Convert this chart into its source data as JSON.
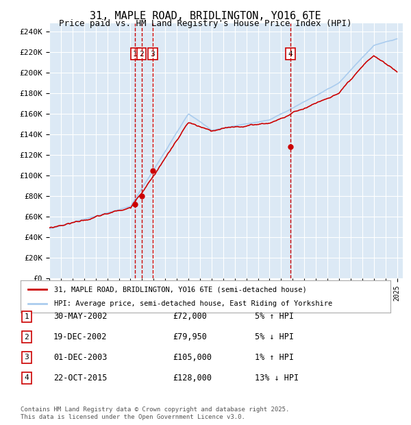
{
  "title": "31, MAPLE ROAD, BRIDLINGTON, YO16 6TE",
  "subtitle": "Price paid vs. HM Land Registry's House Price Index (HPI)",
  "ylabel_ticks": [
    "£0",
    "£20K",
    "£40K",
    "£60K",
    "£80K",
    "£100K",
    "£120K",
    "£140K",
    "£160K",
    "£180K",
    "£200K",
    "£220K",
    "£240K"
  ],
  "ytick_values": [
    0,
    20000,
    40000,
    60000,
    80000,
    100000,
    120000,
    140000,
    160000,
    180000,
    200000,
    220000,
    240000
  ],
  "ylim": [
    0,
    248000
  ],
  "xlim_start": 1995,
  "xlim_end": 2025.5,
  "background_color": "#dce9f5",
  "plot_bg_color": "#dce9f5",
  "outer_bg": "#ffffff",
  "red_line_color": "#cc0000",
  "blue_line_color": "#aaccee",
  "dashed_line_color": "#cc0000",
  "transaction_dates": [
    2002.41,
    2002.96,
    2003.92,
    2015.81
  ],
  "transaction_labels": [
    "1",
    "2",
    "3",
    "4"
  ],
  "transaction_prices": [
    72000,
    79950,
    105000,
    128000
  ],
  "legend_red_label": "31, MAPLE ROAD, BRIDLINGTON, YO16 6TE (semi-detached house)",
  "legend_blue_label": "HPI: Average price, semi-detached house, East Riding of Yorkshire",
  "table_entries": [
    {
      "num": "1",
      "date": "30-MAY-2002",
      "price": "£72,000",
      "pct": "5% ↑ HPI"
    },
    {
      "num": "2",
      "date": "19-DEC-2002",
      "price": "£79,950",
      "pct": "5% ↓ HPI"
    },
    {
      "num": "3",
      "date": "01-DEC-2003",
      "price": "£105,000",
      "pct": "1% ↑ HPI"
    },
    {
      "num": "4",
      "date": "22-OCT-2015",
      "price": "£128,000",
      "pct": "13% ↓ HPI"
    }
  ],
  "footer": "Contains HM Land Registry data © Crown copyright and database right 2025.\nThis data is licensed under the Open Government Licence v3.0."
}
